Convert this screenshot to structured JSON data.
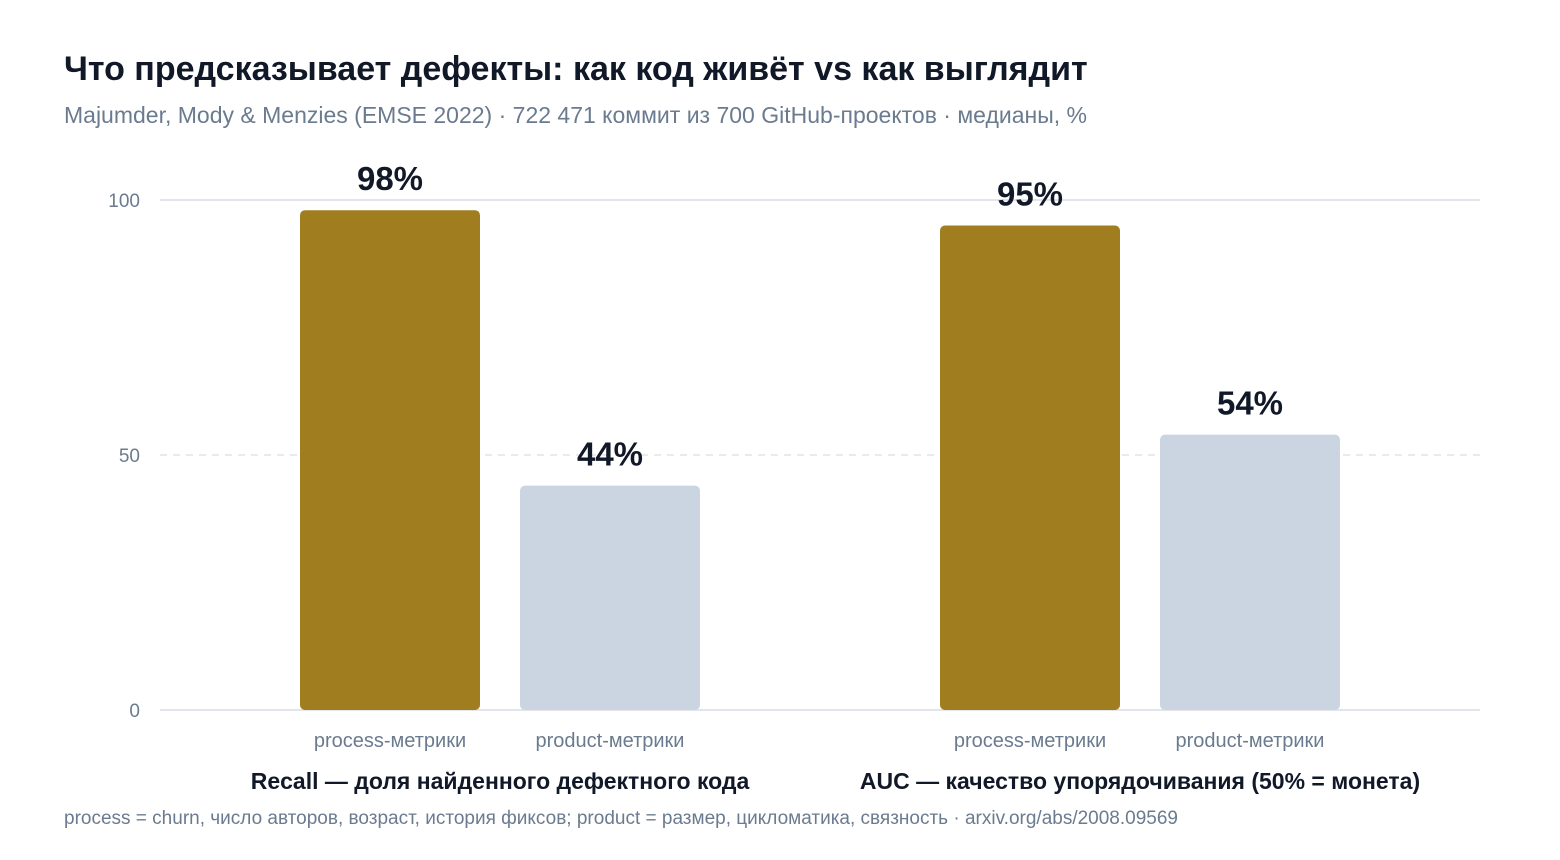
{
  "chart_data": {
    "type": "bar",
    "title": "Что предсказывает дефекты: как код живёт vs как выглядит",
    "subtitle": "Majumder, Mody & Menzies (EMSE 2022) · 722 471 коммит из 700 GitHub-проектов · медианы, %",
    "footnote": "process = churn, число авторов, возраст, история фиксов; product = размер, цикломатика, связность · arxiv.org/abs/2008.09569",
    "ylim": [
      0,
      100
    ],
    "yticks": [
      0,
      50,
      100
    ],
    "grid": true,
    "groups": [
      {
        "label": "Recall — доля найденного дефектного кода",
        "bars": [
          {
            "category": "process-метрики",
            "value": 98,
            "value_label": "98%",
            "color": "#a07d1e"
          },
          {
            "category": "product-метрики",
            "value": 44,
            "value_label": "44%",
            "color": "#cbd5e1"
          }
        ]
      },
      {
        "label": "AUC — качество упорядочивания (50% = монета)",
        "bars": [
          {
            "category": "process-метрики",
            "value": 95,
            "value_label": "95%",
            "color": "#a07d1e"
          },
          {
            "category": "product-метрики",
            "value": 54,
            "value_label": "54%",
            "color": "#cbd5e1"
          }
        ]
      }
    ]
  }
}
